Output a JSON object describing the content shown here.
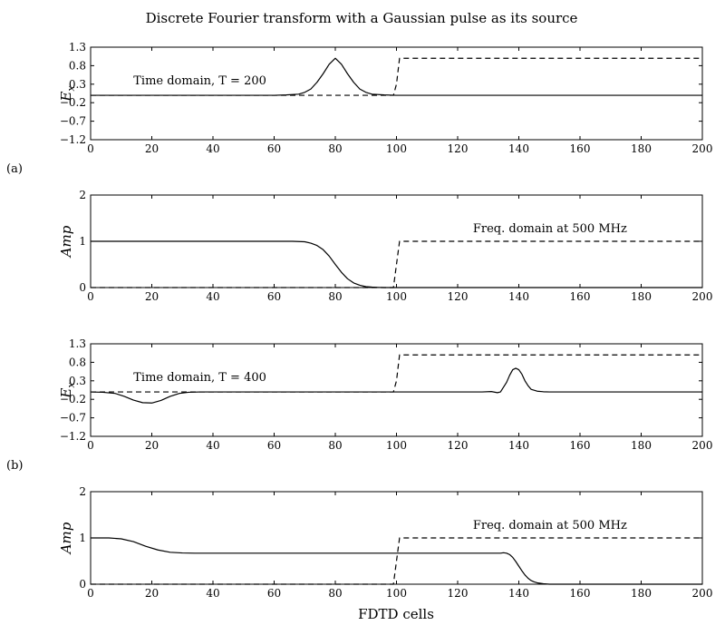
{
  "title": "Discrete Fourier transform with a Gaussian pulse as its source",
  "xlabel": "FDTD cells",
  "panel_labels": [
    "(a)",
    "(b)"
  ],
  "chart_data": [
    {
      "type": "line",
      "ylabel": "E_x",
      "ylabel_main": "E",
      "ylabel_sub": "x",
      "annotation": "Time domain, T = 200",
      "xlim": [
        0,
        200
      ],
      "ylim": [
        -1.2,
        1.3
      ],
      "xticks": [
        0,
        20,
        40,
        60,
        80,
        100,
        120,
        140,
        160,
        180,
        200
      ],
      "yticks": [
        1.3,
        0.8,
        0.3,
        -0.2,
        -0.7,
        -1.2
      ],
      "ytick_labels": [
        "1.3",
        "0.8",
        "0.3",
        "−0.2",
        "−0.7",
        "−1.2"
      ],
      "series": [
        {
          "style": "solid",
          "x": [
            0,
            60,
            64,
            68,
            70,
            72,
            74,
            76,
            78,
            80,
            82,
            84,
            86,
            88,
            90,
            92,
            96,
            100,
            200
          ],
          "y": [
            0,
            0,
            0.01,
            0.03,
            0.08,
            0.17,
            0.35,
            0.58,
            0.84,
            1.0,
            0.84,
            0.58,
            0.35,
            0.17,
            0.08,
            0.03,
            0.01,
            0,
            0
          ]
        },
        {
          "style": "dashed",
          "x": [
            0,
            99,
            100,
            101,
            102,
            200
          ],
          "y": [
            0,
            0,
            0.3,
            1.0,
            1.0,
            1.0
          ]
        }
      ]
    },
    {
      "type": "line",
      "ylabel": "Amp",
      "annotation": "Freq. domain at 500 MHz",
      "xlim": [
        0,
        200
      ],
      "ylim": [
        0,
        2
      ],
      "xticks": [
        0,
        20,
        40,
        60,
        80,
        100,
        120,
        140,
        160,
        180,
        200
      ],
      "yticks": [
        2,
        1,
        0
      ],
      "ytick_labels": [
        "2",
        "1",
        "0"
      ],
      "series": [
        {
          "style": "solid",
          "x": [
            0,
            66,
            70,
            72,
            74,
            76,
            78,
            80,
            82,
            84,
            86,
            88,
            90,
            92,
            94,
            96,
            100,
            200
          ],
          "y": [
            1.0,
            1.0,
            0.99,
            0.96,
            0.91,
            0.82,
            0.68,
            0.5,
            0.33,
            0.19,
            0.1,
            0.05,
            0.02,
            0.01,
            0.004,
            0.0,
            0,
            0
          ]
        },
        {
          "style": "dashed",
          "x": [
            0,
            99,
            100,
            101,
            200
          ],
          "y": [
            0,
            0,
            0.5,
            1.0,
            1.0
          ]
        }
      ]
    },
    {
      "type": "line",
      "ylabel": "E_x",
      "ylabel_main": "E",
      "ylabel_sub": "x",
      "annotation": "Time domain, T = 400",
      "xlim": [
        0,
        200
      ],
      "ylim": [
        -1.2,
        1.3
      ],
      "xticks": [
        0,
        20,
        40,
        60,
        80,
        100,
        120,
        140,
        160,
        180,
        200
      ],
      "yticks": [
        1.3,
        0.8,
        0.3,
        -0.2,
        -0.7,
        -1.2
      ],
      "ytick_labels": [
        "1.3",
        "0.8",
        "0.3",
        "−0.2",
        "−0.7",
        "−1.2"
      ],
      "series": [
        {
          "style": "solid",
          "x": [
            0,
            4,
            8,
            11,
            14,
            17,
            20,
            23,
            26,
            29,
            32,
            36,
            100,
            128,
            131,
            133,
            134,
            136,
            137,
            138,
            139,
            140,
            141,
            142,
            143,
            144,
            146,
            148,
            150,
            200
          ],
          "y": [
            0,
            -0.01,
            -0.04,
            -0.12,
            -0.22,
            -0.29,
            -0.3,
            -0.23,
            -0.12,
            -0.04,
            -0.01,
            0,
            0,
            0,
            0.01,
            -0.02,
            0.0,
            0.26,
            0.45,
            0.6,
            0.64,
            0.6,
            0.48,
            0.3,
            0.17,
            0.07,
            0.02,
            0.005,
            0,
            0
          ]
        },
        {
          "style": "dashed",
          "x": [
            0,
            99,
            100,
            101,
            102,
            200
          ],
          "y": [
            0,
            0,
            0.3,
            1.0,
            1.0,
            1.0
          ]
        }
      ]
    },
    {
      "type": "line",
      "ylabel": "Amp",
      "annotation": "Freq. domain at 500 MHz",
      "xlim": [
        0,
        200
      ],
      "ylim": [
        0,
        2
      ],
      "xticks": [
        0,
        20,
        40,
        60,
        80,
        100,
        120,
        140,
        160,
        180,
        200
      ],
      "yticks": [
        2,
        1,
        0
      ],
      "ytick_labels": [
        "2",
        "1",
        "0"
      ],
      "series": [
        {
          "style": "solid",
          "x": [
            0,
            6,
            10,
            14,
            18,
            22,
            26,
            30,
            34,
            100,
            132,
            134,
            135,
            136,
            137,
            138,
            139,
            140,
            141,
            142,
            143,
            144,
            145,
            146,
            148,
            150,
            200
          ],
          "y": [
            1.0,
            1.0,
            0.98,
            0.92,
            0.82,
            0.74,
            0.69,
            0.675,
            0.67,
            0.67,
            0.67,
            0.67,
            0.68,
            0.67,
            0.64,
            0.58,
            0.49,
            0.39,
            0.29,
            0.2,
            0.13,
            0.08,
            0.05,
            0.03,
            0.01,
            0.0,
            0
          ]
        },
        {
          "style": "dashed",
          "x": [
            0,
            99,
            100,
            101,
            200
          ],
          "y": [
            0,
            0,
            0.5,
            1.0,
            1.0
          ]
        }
      ]
    }
  ]
}
